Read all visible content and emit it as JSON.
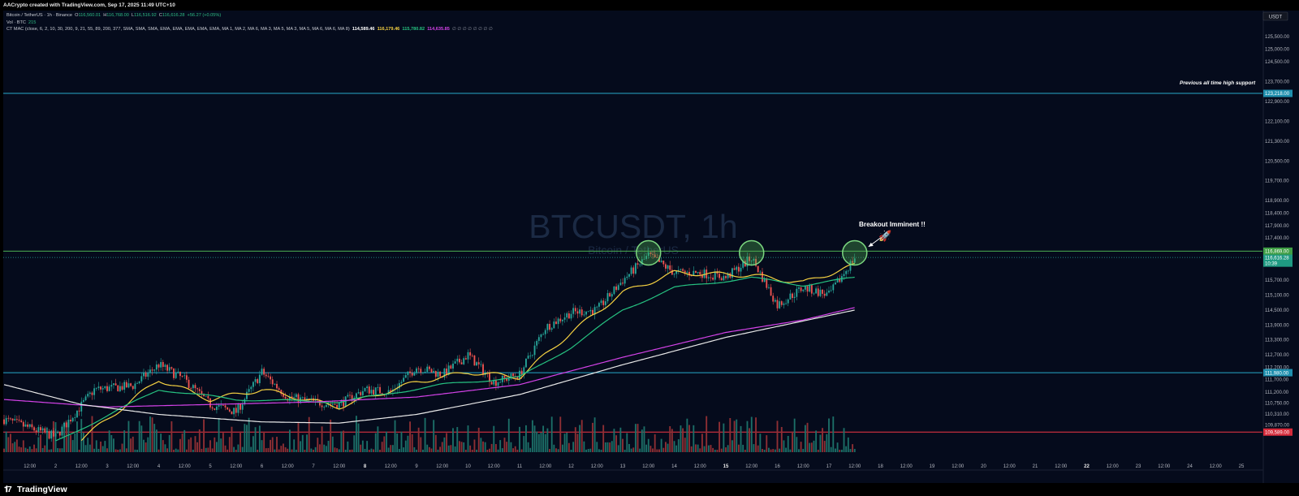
{
  "header": {
    "attribution": "AACrypto created with TradingView.com, Sep 17, 2025 11:49 UTC+10"
  },
  "legend": {
    "symbol": "Bitcoin / TetherUS · 1h · Binance",
    "o_label": "O",
    "o": "116,560.01",
    "h_label": "H",
    "h": "116,768.00",
    "l_label": "L",
    "l": "116,516.92",
    "c_label": "C",
    "c": "116,616.28",
    "change": "+56.27 (+0.05%)",
    "vol_label": "Vol · BTC",
    "vol": "215",
    "mac_label": "CT MAC (close, 6, 2, 10, 30, 200, 9, 21, 55, 89, 200, 377, SMA, SMA, SMA, EMA, EMA, EMA, EMA, EMA, MA 1, MA 2, MA 6, MA 3, MA 5, MA 3, MA 5, MA 6, MA 6, MA 8)",
    "mac_v1": "114,589.46",
    "mac_v2": "116,179.46",
    "mac_v3": "115,780.82",
    "mac_v4": "114,635.85",
    "mac_tail": "∅ ∅ ∅ ∅ ∅ ∅ ∅ ∅"
  },
  "watermark": {
    "symbol": "BTCUSDT, 1h",
    "name": "Bitcoin / TetherUS"
  },
  "annotations": {
    "ath": "Previous all time high support",
    "breakout": "Breakout Imminent !!",
    "rocket": "🚀"
  },
  "price_scale": {
    "currency": "USDT",
    "ticks": [
      "125,500.00",
      "125,000.00",
      "124,500.00",
      "123,700.00",
      "122,900.00",
      "122,100.00",
      "121,300.00",
      "120,500.00",
      "119,700.00",
      "118,900.00",
      "118,400.00",
      "117,900.00",
      "117,400.00",
      "115,700.00",
      "115,100.00",
      "114,500.00",
      "113,900.00",
      "113,300.00",
      "112,700.00",
      "112,200.00",
      "111,700.00",
      "111,200.00",
      "110,750.00",
      "110,310.00",
      "109,870.00"
    ],
    "tags": {
      "ath": "123,218.00",
      "resistance": "116,869.00",
      "last": "116,616.28",
      "countdown": "10:39",
      "support_mid": "111,980.00",
      "support_low": "109,589.00"
    }
  },
  "time_axis": [
    "12:00",
    "2",
    "12:00",
    "3",
    "12:00",
    "4",
    "12:00",
    "5",
    "12:00",
    "6",
    "12:00",
    "7",
    "12:00",
    "8",
    "12:00",
    "9",
    "12:00",
    "10",
    "12:00",
    "11",
    "12:00",
    "12",
    "12:00",
    "13",
    "12:00",
    "14",
    "12:00",
    "15",
    "12:00",
    "16",
    "12:00",
    "17",
    "12:00",
    "18",
    "12:00",
    "19",
    "12:00",
    "20",
    "12:00",
    "21",
    "12:00",
    "22",
    "12:00",
    "23",
    "12:00",
    "24",
    "12:00",
    "25"
  ],
  "footer": {
    "logo": "TradingView"
  },
  "colors": {
    "bg": "#050b1c",
    "up": "#26a69a",
    "down": "#ef5350",
    "ath_line": "#26a8c9",
    "resistance_line": "#4caf50",
    "support_line": "#26a8c9",
    "low_line": "#f23645",
    "ma_fast": "#f5d142",
    "ma_mid": "#26c281",
    "ma_slow": "#d442e8",
    "ma_long": "#e8e8e8"
  },
  "chart_data": {
    "type": "candlestick",
    "title": "BTCUSDT, 1h",
    "ylim": [
      109500,
      125800
    ],
    "x_range": [
      "Sep 1 12:00",
      "Sep 25 12:00"
    ],
    "grid": false,
    "levels": [
      {
        "name": "Previous all time high support",
        "value": 123218
      },
      {
        "name": "resistance",
        "value": 116869
      },
      {
        "name": "support",
        "value": 111980
      },
      {
        "name": "low",
        "value": 109589
      }
    ],
    "price_anchors": [
      {
        "date": "Sep 1 00:00",
        "close": 110100
      },
      {
        "date": "Sep 2 00:00",
        "close": 109400
      },
      {
        "date": "Sep 2 18:00",
        "close": 111300
      },
      {
        "date": "Sep 3 12:00",
        "close": 111450
      },
      {
        "date": "Sep 4 00:00",
        "close": 112300
      },
      {
        "date": "Sep 4 12:00",
        "close": 111700
      },
      {
        "date": "Sep 5 00:00",
        "close": 110700
      },
      {
        "date": "Sep 5 12:00",
        "close": 110400
      },
      {
        "date": "Sep 6 00:00",
        "close": 112000
      },
      {
        "date": "Sep 6 12:00",
        "close": 111000
      },
      {
        "date": "Sep 7 00:00",
        "close": 110800
      },
      {
        "date": "Sep 7 12:00",
        "close": 110700
      },
      {
        "date": "Sep 8 00:00",
        "close": 111300
      },
      {
        "date": "Sep 8 12:00",
        "close": 111200
      },
      {
        "date": "Sep 9 00:00",
        "close": 112200
      },
      {
        "date": "Sep 9 12:00",
        "close": 111900
      },
      {
        "date": "Sep 10 00:00",
        "close": 112700
      },
      {
        "date": "Sep 10 12:00",
        "close": 111600
      },
      {
        "date": "Sep 11 00:00",
        "close": 111900
      },
      {
        "date": "Sep 11 12:00",
        "close": 113800
      },
      {
        "date": "Sep 12 00:00",
        "close": 114400
      },
      {
        "date": "Sep 12 12:00",
        "close": 114500
      },
      {
        "date": "Sep 13 00:00",
        "close": 115700
      },
      {
        "date": "Sep 13 12:00",
        "close": 116700
      },
      {
        "date": "Sep 14 00:00",
        "close": 116000
      },
      {
        "date": "Sep 14 12:00",
        "close": 116000
      },
      {
        "date": "Sep 15 00:00",
        "close": 115800
      },
      {
        "date": "Sep 15 12:00",
        "close": 116600
      },
      {
        "date": "Sep 16 00:00",
        "close": 114700
      },
      {
        "date": "Sep 16 12:00",
        "close": 115400
      },
      {
        "date": "Sep 17 00:00",
        "close": 115100
      },
      {
        "date": "Sep 17 12:00",
        "close": 116616
      }
    ],
    "moving_averages": [
      {
        "color": "#f5d142",
        "anchors": [
          {
            "date": "Sep 2 12:00",
            "value": 109300
          },
          {
            "date": "Sep 4 00:00",
            "value": 111700
          },
          {
            "date": "Sep 5 00:00",
            "value": 110900
          },
          {
            "date": "Sep 6 00:00",
            "value": 111300
          },
          {
            "date": "Sep 7 12:00",
            "value": 110600
          },
          {
            "date": "Sep 9 00:00",
            "value": 111600
          },
          {
            "date": "Sep 10 00:00",
            "value": 112000
          },
          {
            "date": "Sep 11 00:00",
            "value": 111800
          },
          {
            "date": "Sep 12 00:00",
            "value": 113600
          },
          {
            "date": "Sep 13 00:00",
            "value": 115200
          },
          {
            "date": "Sep 14 00:00",
            "value": 116000
          },
          {
            "date": "Sep 15 12:00",
            "value": 115900
          },
          {
            "date": "Sep 16 12:00",
            "value": 115600
          },
          {
            "date": "Sep 17 12:00",
            "value": 116300
          }
        ]
      },
      {
        "color": "#26c281",
        "anchors": [
          {
            "date": "Sep 2 00:00",
            "value": 109200
          },
          {
            "date": "Sep 4 00:00",
            "value": 111300
          },
          {
            "date": "Sep 5 12:00",
            "value": 110900
          },
          {
            "date": "Sep 7 12:00",
            "value": 110800
          },
          {
            "date": "Sep 9 12:00",
            "value": 111500
          },
          {
            "date": "Sep 11 00:00",
            "value": 111800
          },
          {
            "date": "Sep 12 00:00",
            "value": 113000
          },
          {
            "date": "Sep 13 00:00",
            "value": 114500
          },
          {
            "date": "Sep 14 00:00",
            "value": 115400
          },
          {
            "date": "Sep 15 12:00",
            "value": 115800
          },
          {
            "date": "Sep 16 12:00",
            "value": 115500
          },
          {
            "date": "Sep 17 12:00",
            "value": 115800
          }
        ]
      },
      {
        "color": "#d442e8",
        "anchors": [
          {
            "date": "Sep 1 00:00",
            "value": 110900
          },
          {
            "date": "Sep 3 00:00",
            "value": 110600
          },
          {
            "date": "Sep 5 00:00",
            "value": 110700
          },
          {
            "date": "Sep 7 00:00",
            "value": 110800
          },
          {
            "date": "Sep 9 00:00",
            "value": 111000
          },
          {
            "date": "Sep 11 00:00",
            "value": 111500
          },
          {
            "date": "Sep 13 00:00",
            "value": 112600
          },
          {
            "date": "Sep 15 00:00",
            "value": 113600
          },
          {
            "date": "Sep 16 12:00",
            "value": 114100
          },
          {
            "date": "Sep 17 12:00",
            "value": 114600
          }
        ]
      },
      {
        "color": "#e8e8e8",
        "anchors": [
          {
            "date": "Sep 1 00:00",
            "value": 111500
          },
          {
            "date": "Sep 2 12:00",
            "value": 110700
          },
          {
            "date": "Sep 4 00:00",
            "value": 110300
          },
          {
            "date": "Sep 6 00:00",
            "value": 110000
          },
          {
            "date": "Sep 7 12:00",
            "value": 109950
          },
          {
            "date": "Sep 9 00:00",
            "value": 110300
          },
          {
            "date": "Sep 11 00:00",
            "value": 111100
          },
          {
            "date": "Sep 13 00:00",
            "value": 112300
          },
          {
            "date": "Sep 15 00:00",
            "value": 113400
          },
          {
            "date": "Sep 17 12:00",
            "value": 114500
          }
        ]
      }
    ],
    "highlighted_tests": [
      {
        "date": "Sep 13 12:00",
        "value": 116800
      },
      {
        "date": "Sep 15 12:00",
        "value": 116800
      },
      {
        "date": "Sep 17 12:00",
        "value": 116800
      }
    ]
  }
}
